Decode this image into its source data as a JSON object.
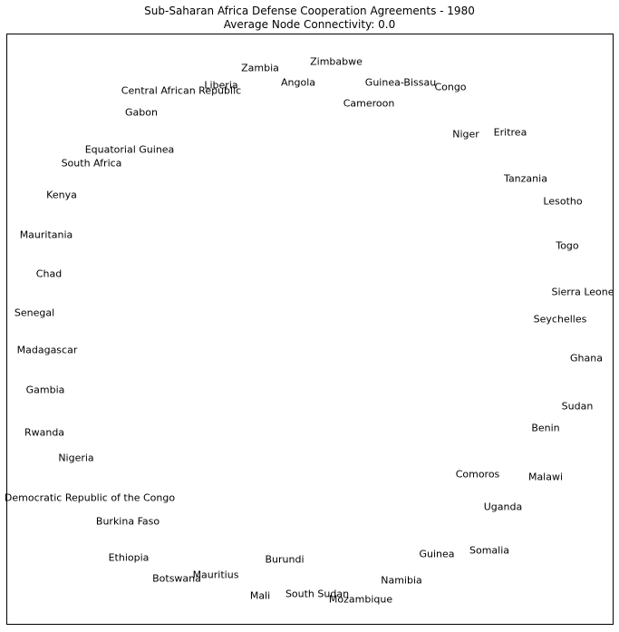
{
  "title": "Sub-Saharan Africa Defense Cooperation Agreements - 1980",
  "subtitle": "Average Node Connectivity: 0.0",
  "nodes": [
    "Zimbabwe",
    "Zambia",
    "Liberia",
    "Angola",
    "Guinea-Bissau",
    "Congo",
    "Central African Republic",
    "Cameroon",
    "Gabon",
    "Niger",
    "Eritrea",
    "Equatorial Guinea",
    "South Africa",
    "Tanzania",
    "Kenya",
    "Lesotho",
    "Mauritania",
    "Togo",
    "Chad",
    "Sierra Leone",
    "Senegal",
    "Seychelles",
    "Madagascar",
    "Ghana",
    "Gambia",
    "Sudan",
    "Rwanda",
    "Benin",
    "Nigeria",
    "Comoros",
    "Malawi",
    "Democratic Republic of the Congo",
    "Uganda",
    "Burkina Faso",
    "Somalia",
    "Guinea",
    "Ethiopia",
    "Burundi",
    "Botswana",
    "Mauritius",
    "Namibia",
    "Mali",
    "South Sudan",
    "Mozambique"
  ],
  "edges": []
}
